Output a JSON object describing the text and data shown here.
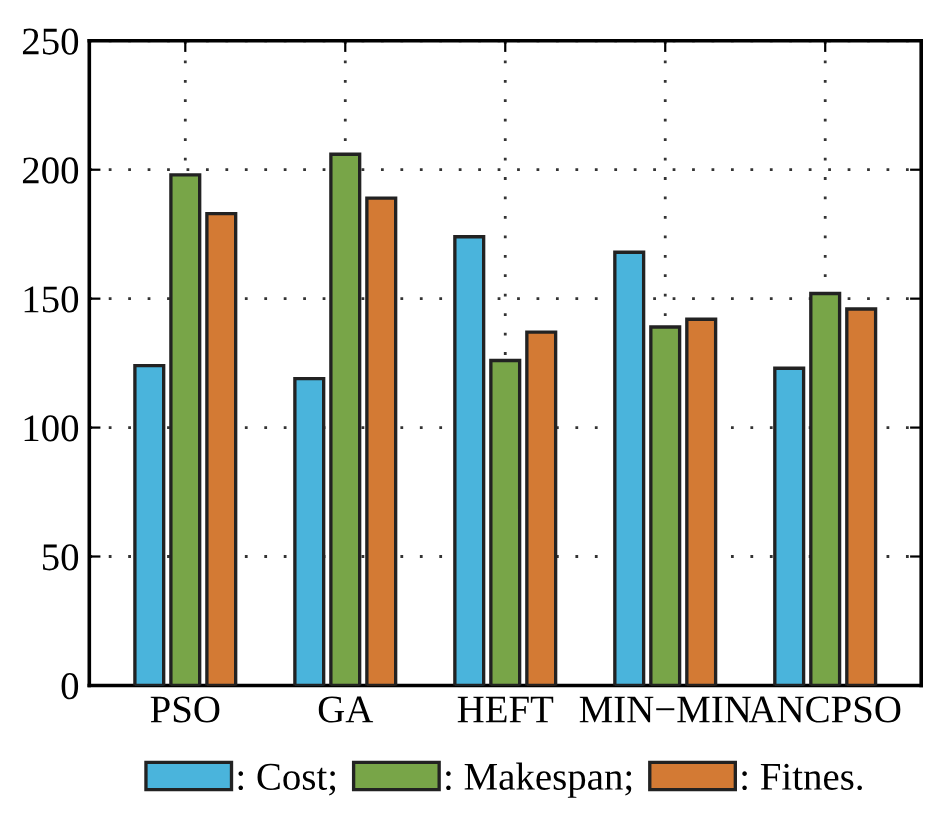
{
  "chart_data": {
    "type": "bar",
    "categories": [
      "PSO",
      "GA",
      "HEFT",
      "MIN−MIN",
      "ANCPSO"
    ],
    "series": [
      {
        "name": ": Cost;",
        "color": "#4ab4dc",
        "values": [
          124,
          119,
          174,
          168,
          123
        ]
      },
      {
        "name": ": Makespan;",
        "color": "#78a548",
        "values": [
          198,
          206,
          126,
          139,
          152
        ]
      },
      {
        "name": ": Fitnes.",
        "color": "#d37a34",
        "values": [
          183,
          189,
          137,
          142,
          146
        ]
      }
    ],
    "ylim": [
      0,
      250
    ],
    "yticks": [
      0,
      50,
      100,
      150,
      200,
      250
    ],
    "grid": true,
    "legend": "bottom"
  }
}
